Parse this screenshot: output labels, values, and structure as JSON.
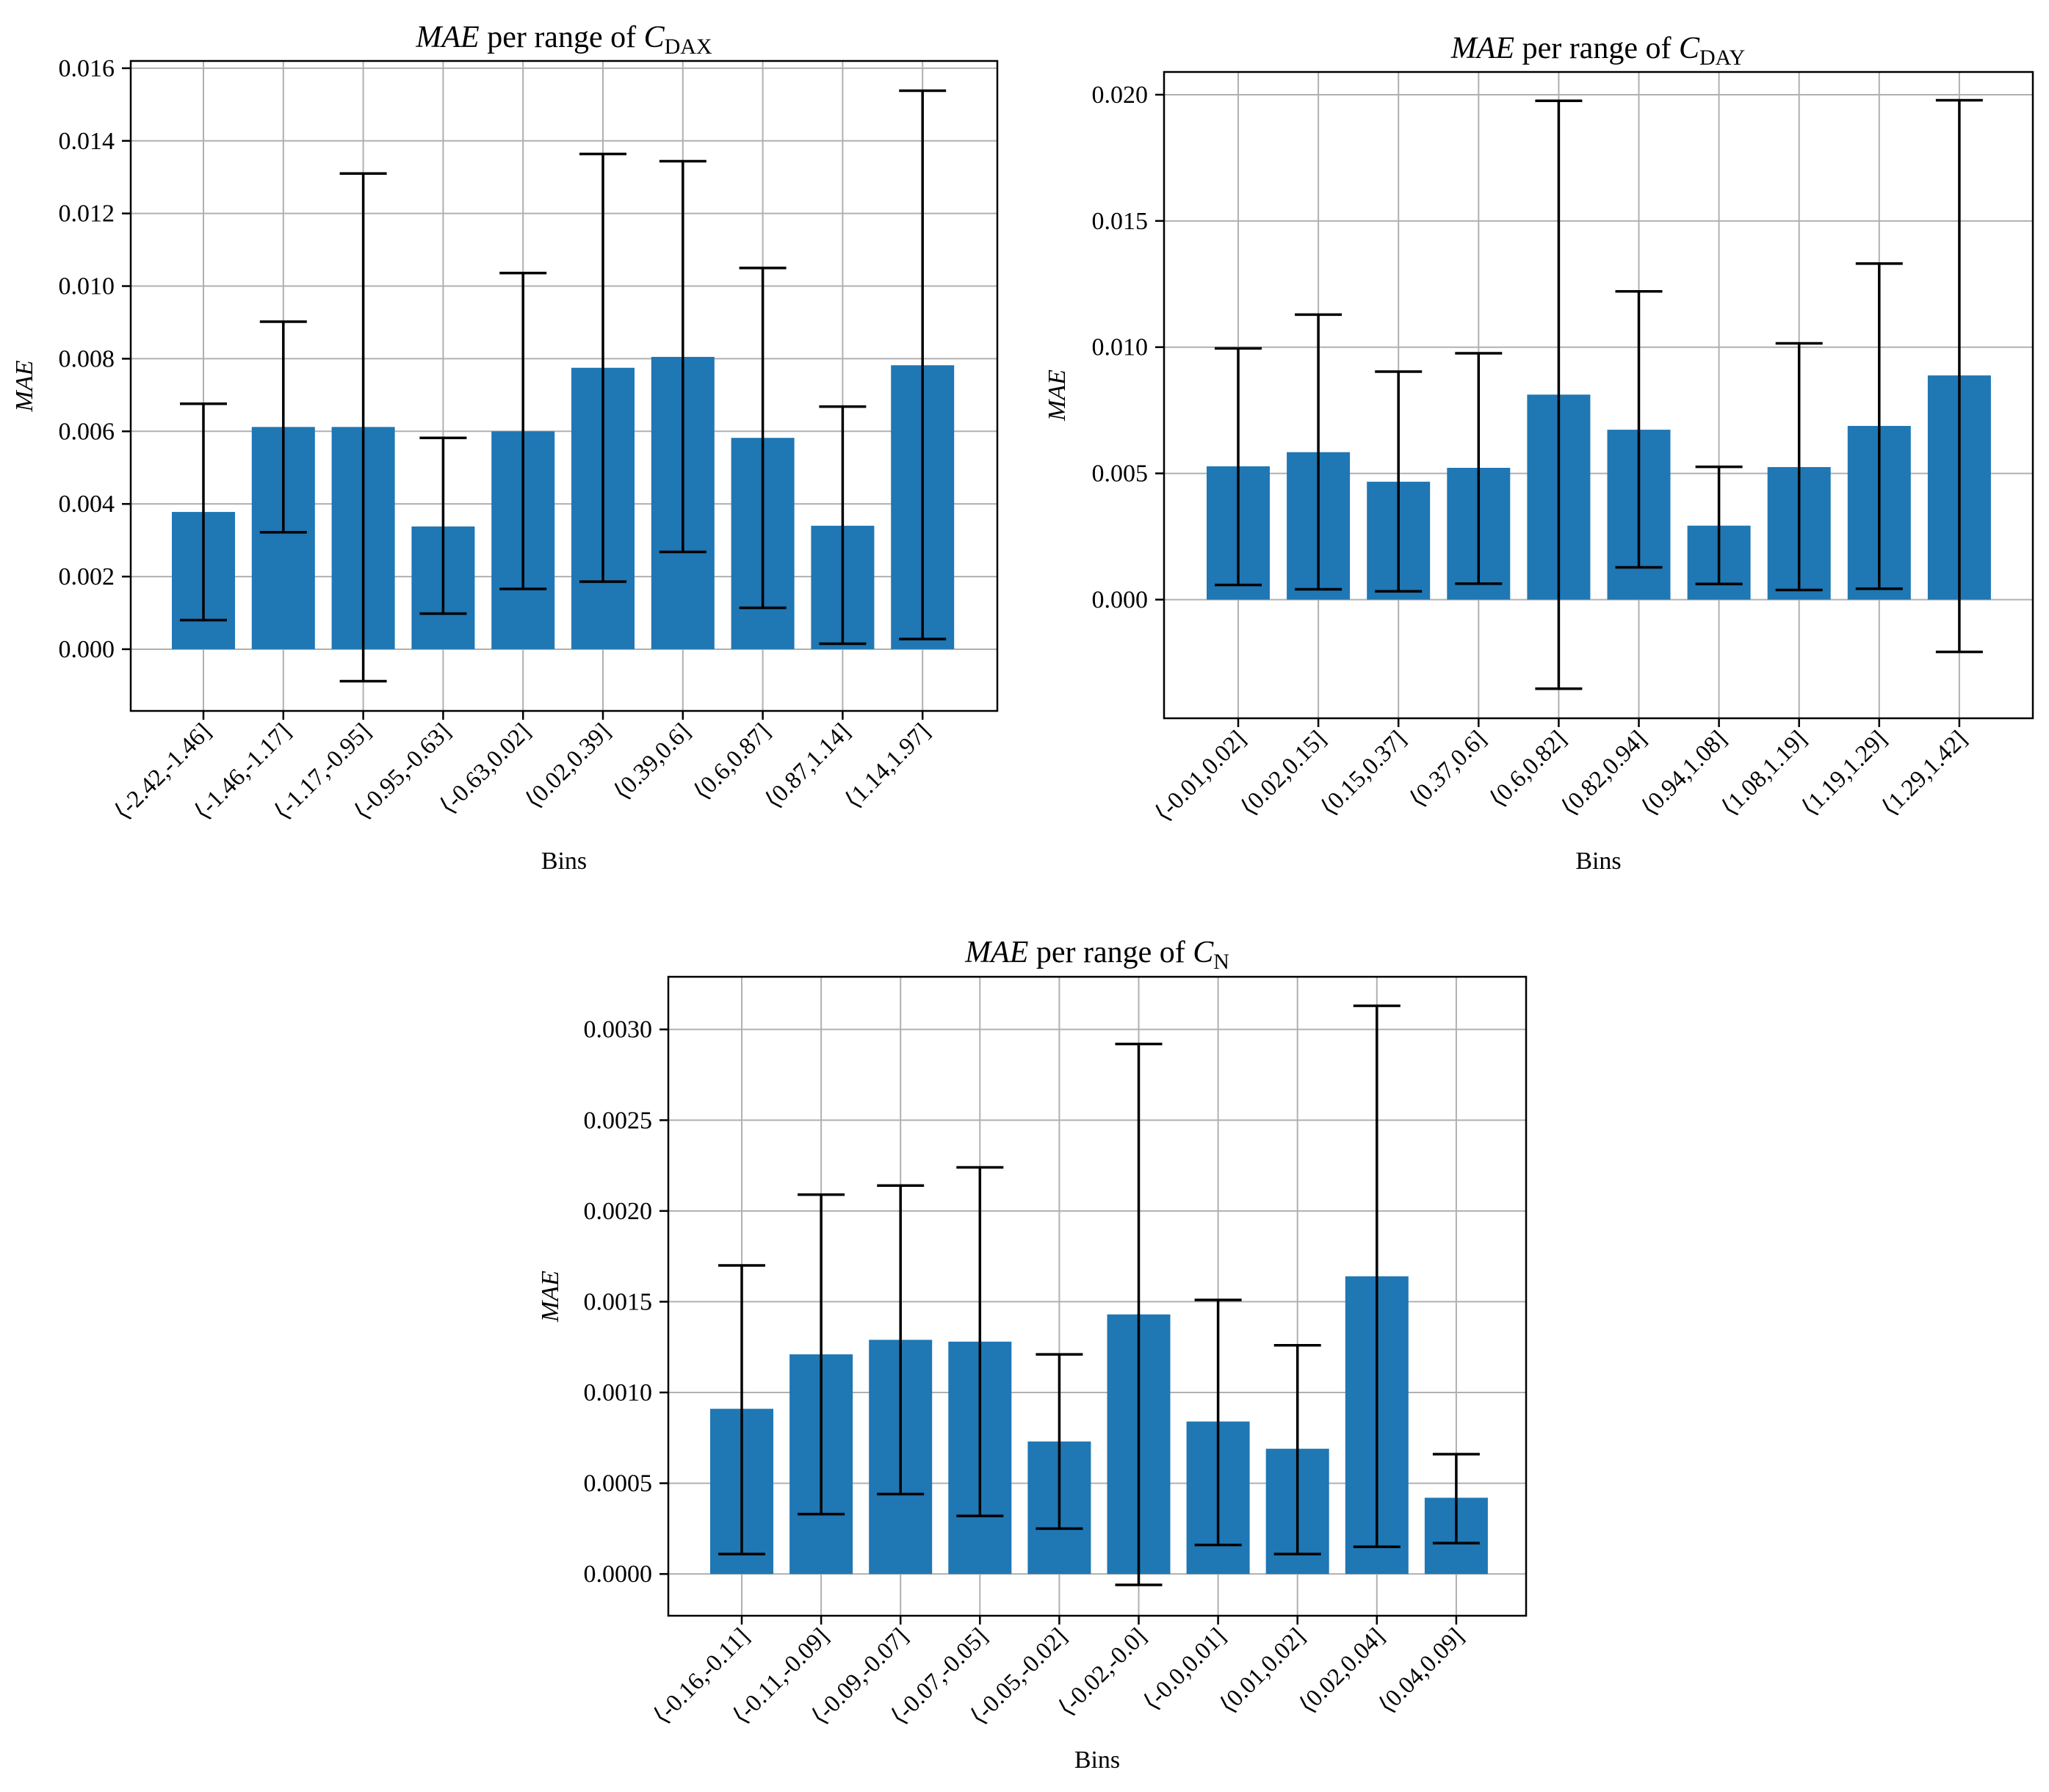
{
  "chart_data": [
    {
      "type": "bar",
      "title_main": "MAE",
      "title_rest": "per range of",
      "title_var": "C",
      "title_sub": "DAX",
      "xlabel": "Bins",
      "ylabel": "MAE",
      "ylim": [
        -0.0017,
        0.0162
      ],
      "yticks": [
        0.0,
        0.002,
        0.004,
        0.006,
        0.008,
        0.01,
        0.012,
        0.014,
        0.016
      ],
      "ytick_labels": [
        "0.000",
        "0.002",
        "0.004",
        "0.006",
        "0.008",
        "0.010",
        "0.012",
        "0.014",
        "0.016"
      ],
      "grid": true,
      "categories": [
        "⟨-2.42,-1.46]",
        "⟨-1.46,-1.17]",
        "⟨-1.17,-0.95]",
        "⟨-0.95,-0.63]",
        "⟨-0.63,0.02]",
        "⟨0.02,0.39]",
        "⟨0.39,0.6]",
        "⟨0.6,0.87]",
        "⟨0.87,1.14]",
        "⟨1.14,1.97]"
      ],
      "values": [
        0.00378,
        0.00612,
        0.00612,
        0.00338,
        0.006,
        0.00775,
        0.00805,
        0.00582,
        0.0034,
        0.00782
      ],
      "err_low": [
        0.0008,
        0.00322,
        -0.00088,
        0.00098,
        0.00166,
        0.00186,
        0.00268,
        0.00114,
        0.00015,
        0.00028
      ],
      "err_high": [
        0.00676,
        0.00902,
        0.0131,
        0.00582,
        0.01036,
        0.01364,
        0.01344,
        0.0105,
        0.00668,
        0.01538
      ]
    },
    {
      "type": "bar",
      "title_main": "MAE",
      "title_rest": "per range of",
      "title_var": "C",
      "title_sub": "DAY",
      "xlabel": "Bins",
      "ylabel": "MAE",
      "ylim": [
        -0.0047,
        0.0209
      ],
      "yticks": [
        0.0,
        0.005,
        0.01,
        0.015,
        0.02
      ],
      "ytick_labels": [
        "0.000",
        "0.005",
        "0.010",
        "0.015",
        "0.020"
      ],
      "grid": true,
      "categories": [
        "⟨-0.01,0.02]",
        "⟨0.02,0.15]",
        "⟨0.15,0.37]",
        "⟨0.37,0.6]",
        "⟨0.6,0.82]",
        "⟨0.82,0.94]",
        "⟨0.94,1.08]",
        "⟨1.08,1.19]",
        "⟨1.19,1.29]",
        "⟨1.29,1.42]"
      ],
      "values": [
        0.00528,
        0.00584,
        0.00467,
        0.00522,
        0.00812,
        0.00673,
        0.00293,
        0.00525,
        0.00688,
        0.00888
      ],
      "err_low": [
        0.00058,
        0.00041,
        0.00033,
        0.00063,
        -0.00353,
        0.00128,
        0.00062,
        0.00038,
        0.00043,
        -0.00207
      ],
      "err_high": [
        0.00995,
        0.01129,
        0.00903,
        0.00976,
        0.01976,
        0.01221,
        0.00526,
        0.01015,
        0.01331,
        0.01978
      ]
    },
    {
      "type": "bar",
      "title_main": "MAE",
      "title_rest": "per range of",
      "title_var": "C",
      "title_sub": "N",
      "xlabel": "Bins",
      "ylabel": "MAE",
      "ylim": [
        -0.00023,
        0.00329
      ],
      "yticks": [
        0.0,
        0.0005,
        0.001,
        0.0015,
        0.002,
        0.0025,
        0.003
      ],
      "ytick_labels": [
        "0.0000",
        "0.0005",
        "0.0010",
        "0.0015",
        "0.0020",
        "0.0025",
        "0.0030"
      ],
      "grid": true,
      "categories": [
        "⟨-0.16,-0.11]",
        "⟨-0.11,-0.09]",
        "⟨-0.09,-0.07]",
        "⟨-0.07,-0.05]",
        "⟨-0.05,-0.02]",
        "⟨-0.02,-0.0]",
        "⟨-0.0,0.01]",
        "⟨0.01,0.02]",
        "⟨0.02,0.04]",
        "⟨0.04,0.09]"
      ],
      "values": [
        0.00091,
        0.00121,
        0.00129,
        0.00128,
        0.00073,
        0.00143,
        0.00084,
        0.00069,
        0.00164,
        0.00042
      ],
      "err_low": [
        0.00011,
        0.00033,
        0.00044,
        0.00032,
        0.00025,
        -6e-05,
        0.00016,
        0.00011,
        0.00015,
        0.00017
      ],
      "err_high": [
        0.0017,
        0.00209,
        0.00214,
        0.00224,
        0.00121,
        0.00292,
        0.00151,
        0.00126,
        0.00313,
        0.00066
      ]
    }
  ]
}
